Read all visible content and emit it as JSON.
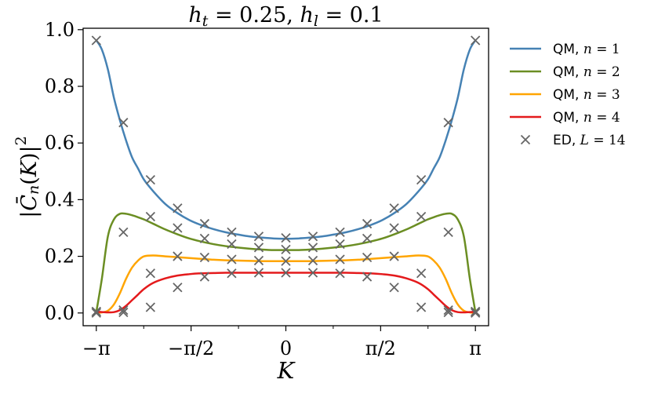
{
  "chart_data": {
    "type": "line",
    "title": "h_t = 0.25, h_l = 0.1",
    "xlabel": "K",
    "ylabel": "|C̄_n(K)|²",
    "xlim": [
      -3.36,
      3.36
    ],
    "ylim": [
      -0.045,
      1.005
    ],
    "x_ticks": [
      {
        "value": -3.14159,
        "label": "−π"
      },
      {
        "value": -1.5708,
        "label": "−π/2"
      },
      {
        "value": 0,
        "label": "0"
      },
      {
        "value": 1.5708,
        "label": "π/2"
      },
      {
        "value": 3.14159,
        "label": "π"
      }
    ],
    "x_minor_ticks": [
      -2.356,
      -0.785,
      0.785,
      2.356
    ],
    "y_ticks": [
      {
        "value": 0.0,
        "label": "0.0"
      },
      {
        "value": 0.2,
        "label": "0.2"
      },
      {
        "value": 0.4,
        "label": "0.4"
      },
      {
        "value": 0.6,
        "label": "0.6"
      },
      {
        "value": 0.8,
        "label": "0.8"
      },
      {
        "value": 1.0,
        "label": "1.0"
      }
    ],
    "grid": false,
    "legend_position": "outside-right",
    "series": [
      {
        "name": "QM, n = 1",
        "kind": "line",
        "color": "#4682b4",
        "x": [
          -3.14,
          -3.05,
          -2.95,
          -2.85,
          -2.75,
          -2.65,
          -2.55,
          -2.45,
          -2.35,
          -2.2,
          -2.0,
          -1.8,
          -1.6,
          -1.4,
          -1.2,
          -1.0,
          -0.8,
          -0.6,
          -0.4,
          -0.2,
          0,
          0.2,
          0.4,
          0.6,
          0.8,
          1.0,
          1.2,
          1.4,
          1.6,
          1.8,
          2.0,
          2.2,
          2.35,
          2.45,
          2.55,
          2.65,
          2.75,
          2.85,
          2.95,
          3.05,
          3.14
        ],
        "y": [
          0.962,
          0.93,
          0.86,
          0.76,
          0.68,
          0.61,
          0.55,
          0.51,
          0.47,
          0.43,
          0.385,
          0.353,
          0.328,
          0.31,
          0.296,
          0.285,
          0.277,
          0.27,
          0.266,
          0.263,
          0.262,
          0.263,
          0.266,
          0.27,
          0.277,
          0.285,
          0.296,
          0.31,
          0.328,
          0.353,
          0.385,
          0.43,
          0.47,
          0.51,
          0.55,
          0.61,
          0.68,
          0.76,
          0.86,
          0.93,
          0.962
        ]
      },
      {
        "name": "QM, n = 2",
        "kind": "line",
        "color": "#6b8e23",
        "x": [
          -3.14,
          -3.05,
          -2.95,
          -2.85,
          -2.75,
          -2.65,
          -2.55,
          -2.45,
          -2.35,
          -2.2,
          -2.0,
          -1.8,
          -1.6,
          -1.4,
          -1.2,
          -1.0,
          -0.8,
          -0.6,
          -0.4,
          -0.2,
          0,
          0.2,
          0.4,
          0.6,
          0.8,
          1.0,
          1.2,
          1.4,
          1.6,
          1.8,
          2.0,
          2.2,
          2.35,
          2.45,
          2.55,
          2.65,
          2.75,
          2.85,
          2.95,
          3.05,
          3.14
        ],
        "y": [
          0.005,
          0.12,
          0.27,
          0.33,
          0.35,
          0.35,
          0.345,
          0.338,
          0.33,
          0.315,
          0.295,
          0.278,
          0.263,
          0.252,
          0.243,
          0.236,
          0.231,
          0.227,
          0.224,
          0.222,
          0.222,
          0.222,
          0.224,
          0.227,
          0.231,
          0.236,
          0.243,
          0.252,
          0.263,
          0.278,
          0.295,
          0.315,
          0.33,
          0.338,
          0.345,
          0.35,
          0.35,
          0.33,
          0.27,
          0.12,
          0.005
        ]
      },
      {
        "name": "QM, n = 3",
        "kind": "line",
        "color": "#ffa500",
        "x": [
          -3.14,
          -3.05,
          -2.95,
          -2.85,
          -2.75,
          -2.65,
          -2.55,
          -2.45,
          -2.35,
          -2.2,
          -2.0,
          -1.8,
          -1.6,
          -1.4,
          -1.2,
          -1.0,
          -0.8,
          -0.6,
          -0.4,
          -0.2,
          0,
          0.2,
          0.4,
          0.6,
          0.8,
          1.0,
          1.2,
          1.4,
          1.6,
          1.8,
          2.0,
          2.2,
          2.35,
          2.45,
          2.55,
          2.65,
          2.75,
          2.85,
          2.95,
          3.05,
          3.14
        ],
        "y": [
          0.0,
          0.002,
          0.008,
          0.03,
          0.07,
          0.12,
          0.16,
          0.185,
          0.2,
          0.203,
          0.2,
          0.197,
          0.194,
          0.191,
          0.188,
          0.186,
          0.185,
          0.184,
          0.183,
          0.183,
          0.183,
          0.183,
          0.183,
          0.184,
          0.185,
          0.186,
          0.188,
          0.191,
          0.194,
          0.197,
          0.2,
          0.203,
          0.2,
          0.185,
          0.16,
          0.12,
          0.07,
          0.03,
          0.008,
          0.002,
          0.0
        ]
      },
      {
        "name": "QM, n = 4",
        "kind": "line",
        "color": "#e41a1c",
        "x": [
          -3.14,
          -3.05,
          -2.95,
          -2.85,
          -2.75,
          -2.65,
          -2.55,
          -2.45,
          -2.35,
          -2.2,
          -2.0,
          -1.8,
          -1.6,
          -1.4,
          -1.2,
          -1.0,
          -0.8,
          -0.6,
          -0.4,
          -0.2,
          0,
          0.2,
          0.4,
          0.6,
          0.8,
          1.0,
          1.2,
          1.4,
          1.6,
          1.8,
          2.0,
          2.2,
          2.35,
          2.45,
          2.55,
          2.65,
          2.75,
          2.85,
          2.95,
          3.05,
          3.14
        ],
        "y": [
          0.005,
          0.003,
          0.002,
          0.003,
          0.01,
          0.025,
          0.045,
          0.065,
          0.085,
          0.106,
          0.122,
          0.132,
          0.137,
          0.14,
          0.141,
          0.142,
          0.142,
          0.142,
          0.142,
          0.142,
          0.142,
          0.142,
          0.142,
          0.142,
          0.142,
          0.142,
          0.141,
          0.14,
          0.137,
          0.132,
          0.122,
          0.106,
          0.085,
          0.065,
          0.045,
          0.025,
          0.01,
          0.003,
          0.002,
          0.003,
          0.005
        ]
      },
      {
        "name": "ED, L = 14",
        "kind": "markers",
        "color": "#666666",
        "x": [
          -3.1416,
          -2.6928,
          -2.244,
          -1.7952,
          -1.3464,
          -0.8976,
          -0.4488,
          0,
          0.4488,
          0.8976,
          1.3464,
          1.7952,
          2.244,
          2.6928,
          3.1416
        ],
        "y_sets": [
          [
            0.962,
            0.672,
            0.47,
            0.37,
            0.315,
            0.285,
            0.27,
            0.265,
            0.27,
            0.285,
            0.315,
            0.37,
            0.47,
            0.672,
            0.962
          ],
          [
            0.005,
            0.285,
            0.34,
            0.3,
            0.263,
            0.243,
            0.231,
            0.224,
            0.231,
            0.243,
            0.263,
            0.3,
            0.34,
            0.285,
            0.005
          ],
          [
            0.0,
            0.01,
            0.14,
            0.2,
            0.196,
            0.189,
            0.185,
            0.183,
            0.185,
            0.189,
            0.196,
            0.2,
            0.14,
            0.01,
            0.0
          ],
          [
            0.005,
            0.002,
            0.02,
            0.09,
            0.128,
            0.14,
            0.142,
            0.142,
            0.142,
            0.14,
            0.128,
            0.09,
            0.02,
            0.002,
            0.005
          ]
        ]
      }
    ]
  }
}
